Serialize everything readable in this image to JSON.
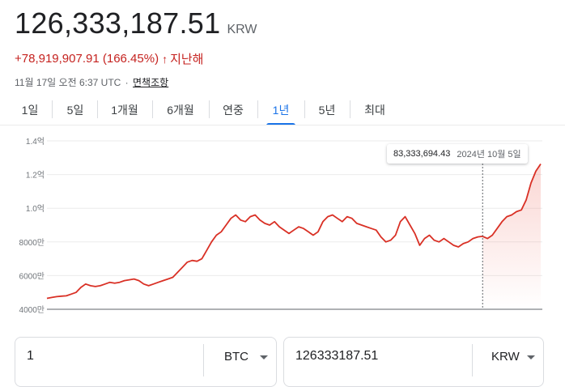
{
  "price": {
    "value": "126,333,187.51",
    "currency": "KRW"
  },
  "change": {
    "text": "+78,919,907.91 (166.45%)",
    "arrow": "↑",
    "period": "지난해",
    "color": "#c5221f"
  },
  "meta": {
    "timestamp": "11월 17일 오전 6:37 UTC",
    "separator": "·",
    "disclaimer": "면책조항"
  },
  "tabs": [
    {
      "label": "1일",
      "active": false
    },
    {
      "label": "5일",
      "active": false
    },
    {
      "label": "1개월",
      "active": false
    },
    {
      "label": "6개월",
      "active": false
    },
    {
      "label": "연중",
      "active": false
    },
    {
      "label": "1년",
      "active": true
    },
    {
      "label": "5년",
      "active": false
    },
    {
      "label": "최대",
      "active": false
    }
  ],
  "tooltip": {
    "value": "83,333,694.43",
    "date": "2024년 10월 5일"
  },
  "converter": {
    "from": {
      "value": "1",
      "unit": "BTC"
    },
    "to": {
      "value": "126333187.51",
      "unit": "KRW"
    }
  },
  "chart_data": {
    "type": "line",
    "title": "",
    "xlabel": "",
    "ylabel": "",
    "y_ticks": [
      {
        "value": 40000000,
        "label": "4000만"
      },
      {
        "value": 60000000,
        "label": "6000만"
      },
      {
        "value": 80000000,
        "label": "8000만"
      },
      {
        "value": 100000000,
        "label": "1.0억"
      },
      {
        "value": 120000000,
        "label": "1.2억"
      },
      {
        "value": 140000000,
        "label": "1.4억"
      }
    ],
    "ylim": [
      40000000,
      140000000
    ],
    "grid": true,
    "line_color": "#d93025",
    "hover_index": 90,
    "series": [
      {
        "values": [
          46.5,
          47,
          47.5,
          47.8,
          48,
          49,
          50,
          53,
          55,
          54,
          53.5,
          54,
          55,
          56,
          55.5,
          56,
          57,
          57.5,
          58,
          57,
          55,
          54,
          55,
          56,
          57,
          58,
          59,
          62,
          65,
          68,
          69,
          68.5,
          70,
          75,
          80,
          84,
          86,
          90,
          94,
          96,
          93,
          92,
          95,
          96,
          93,
          91,
          90,
          92,
          89,
          87,
          85,
          87,
          89,
          88,
          86,
          84,
          86,
          92,
          95,
          96,
          94,
          92,
          95,
          94,
          91,
          90,
          89,
          88,
          87,
          83,
          80,
          81,
          84,
          92,
          95,
          90,
          85,
          78,
          82,
          84,
          81,
          80,
          82,
          80,
          78,
          77,
          79,
          80,
          82,
          83,
          83.3,
          82,
          84,
          88,
          92,
          95,
          96,
          98,
          99,
          105,
          115,
          122,
          126.3
        ]
      }
    ]
  }
}
